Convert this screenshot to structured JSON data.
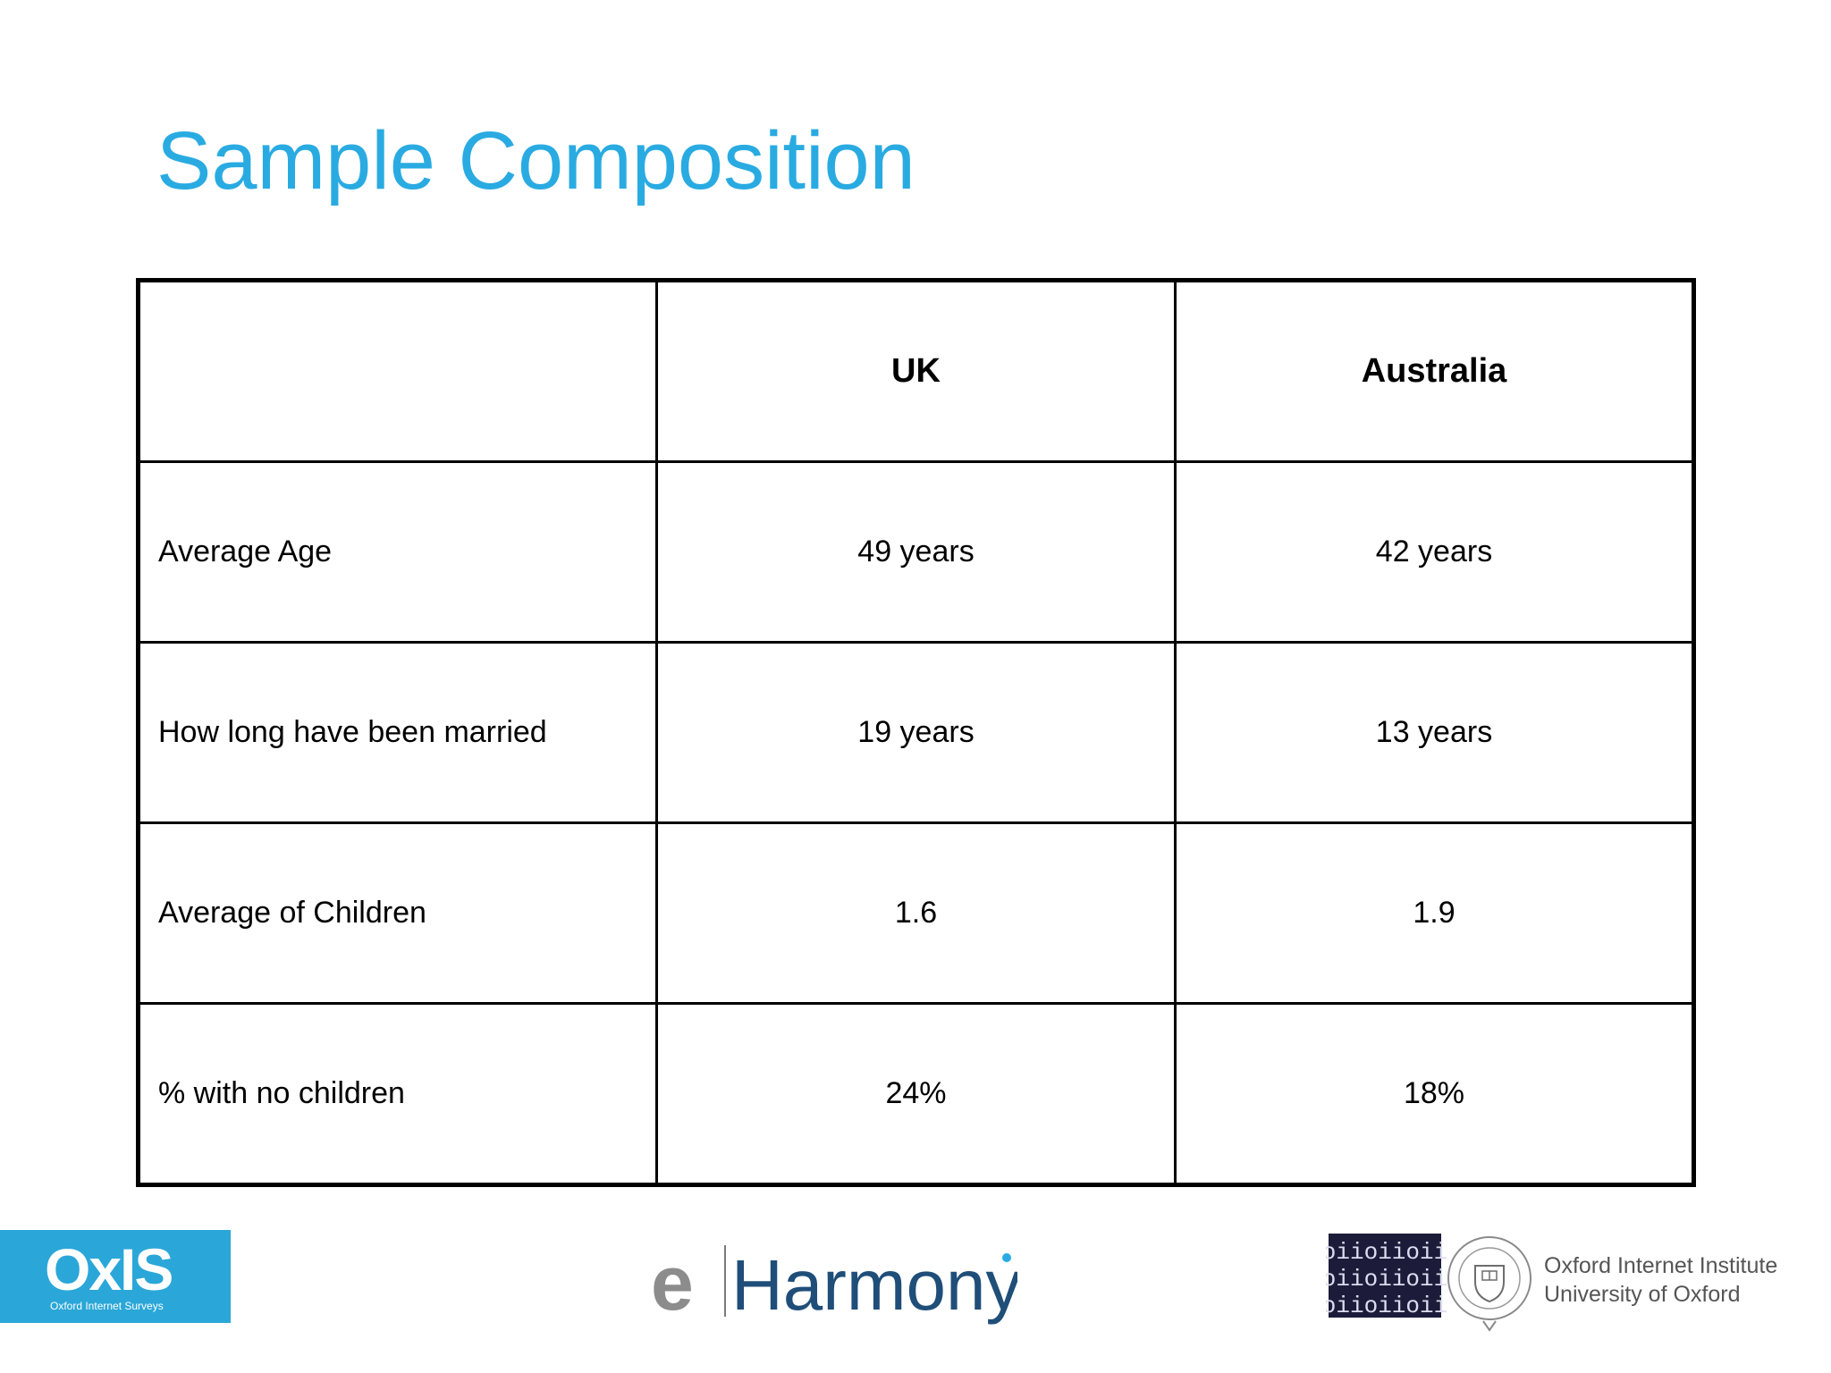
{
  "slide": {
    "title": "Sample Composition"
  },
  "table": {
    "headers": [
      "",
      "UK",
      "Australia"
    ],
    "rows": [
      [
        "Average Age",
        "49 years",
        "42 years"
      ],
      [
        "How long have been married",
        "19 years",
        "13 years"
      ],
      [
        "Average of Children",
        "1.6",
        "1.9"
      ],
      [
        "% with no children",
        "24%",
        "18%"
      ]
    ]
  },
  "logos": {
    "oxis": {
      "wordmark": "OxIS",
      "subtitle": "Oxford Internet Surveys",
      "color": "#2aa7d8"
    },
    "eharmony": {
      "letter": "e",
      "wordmark": "Harmony",
      "accent": "#1f4e79"
    },
    "oii": {
      "binary": [
        "oiioiioii",
        "oiioiioii",
        "oiioiioii"
      ],
      "line1": "Oxford Internet Institute",
      "line2": "University of Oxford"
    }
  },
  "colors": {
    "title": "#29abe2",
    "table_border": "#000000"
  }
}
